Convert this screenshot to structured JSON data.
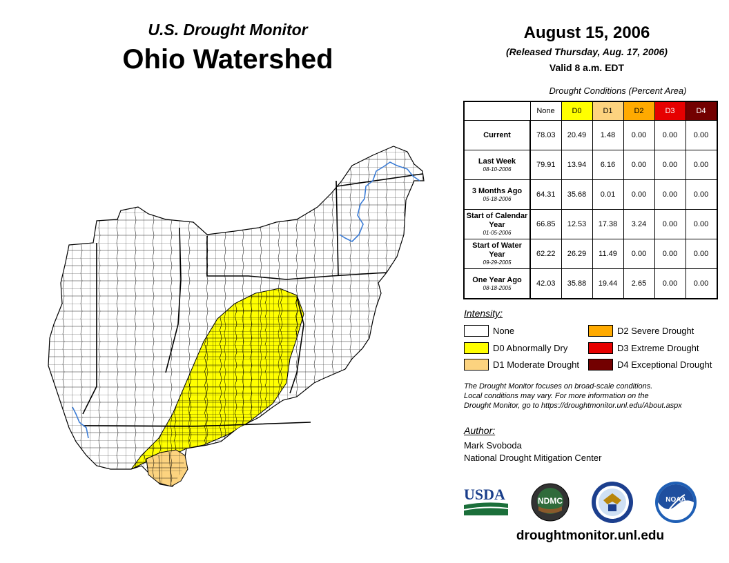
{
  "header": {
    "subtitle": "U.S. Drought Monitor",
    "title": "Ohio Watershed"
  },
  "release": {
    "date": "August 15, 2006",
    "released": "(Released Thursday, Aug. 17, 2006)",
    "valid": "Valid 8 a.m. EDT"
  },
  "table": {
    "caption": "Drought Conditions (Percent Area)",
    "columns": [
      "None",
      "D0",
      "D1",
      "D2",
      "D3",
      "D4"
    ],
    "column_colors": [
      "#ffffff",
      "#ffff00",
      "#fcd37f",
      "#ffaa00",
      "#e60000",
      "#730000"
    ],
    "rows": [
      {
        "label": "Current",
        "date": "",
        "values": [
          "78.03",
          "20.49",
          "1.48",
          "0.00",
          "0.00",
          "0.00"
        ]
      },
      {
        "label": "Last Week",
        "date": "08-10-2006",
        "values": [
          "79.91",
          "13.94",
          "6.16",
          "0.00",
          "0.00",
          "0.00"
        ]
      },
      {
        "label": "3 Months Ago",
        "date": "05-18-2006",
        "values": [
          "64.31",
          "35.68",
          "0.01",
          "0.00",
          "0.00",
          "0.00"
        ]
      },
      {
        "label": "Start of Calendar Year",
        "date": "01-05-2006",
        "values": [
          "66.85",
          "12.53",
          "17.38",
          "3.24",
          "0.00",
          "0.00"
        ]
      },
      {
        "label": "Start of Water Year",
        "date": "09-29-2005",
        "values": [
          "62.22",
          "26.29",
          "11.49",
          "0.00",
          "0.00",
          "0.00"
        ]
      },
      {
        "label": "One Year Ago",
        "date": "08-18-2005",
        "values": [
          "42.03",
          "35.88",
          "19.44",
          "2.65",
          "0.00",
          "0.00"
        ]
      }
    ]
  },
  "legend": {
    "title": "Intensity:",
    "items": [
      {
        "label": "None",
        "color": "#ffffff"
      },
      {
        "label": "D0 Abnormally Dry",
        "color": "#ffff00"
      },
      {
        "label": "D1 Moderate Drought",
        "color": "#fcd37f"
      },
      {
        "label": "D2 Severe Drought",
        "color": "#ffaa00"
      },
      {
        "label": "D3 Extreme Drought",
        "color": "#e60000"
      },
      {
        "label": "D4 Exceptional Drought",
        "color": "#730000"
      }
    ]
  },
  "notes": {
    "line1": "The Drought Monitor focuses on broad-scale conditions.",
    "line2": "Local conditions may vary. For more information on the",
    "line3": "Drought Monitor, go to https://droughtmonitor.unl.edu/About.aspx"
  },
  "author": {
    "heading": "Author:",
    "name": "Mark Svoboda",
    "org": "National Drought Mitigation Center"
  },
  "logos": {
    "usda": "USDA",
    "ndmc": "NDMC",
    "noaa": "NOAA"
  },
  "footer": {
    "url": "droughtmonitor.unl.edu"
  },
  "map": {
    "colors": {
      "none": "#ffffff",
      "d0": "#ffff00",
      "d1": "#fcd37f",
      "border": "#000000",
      "river": "#3a7bd5"
    }
  }
}
